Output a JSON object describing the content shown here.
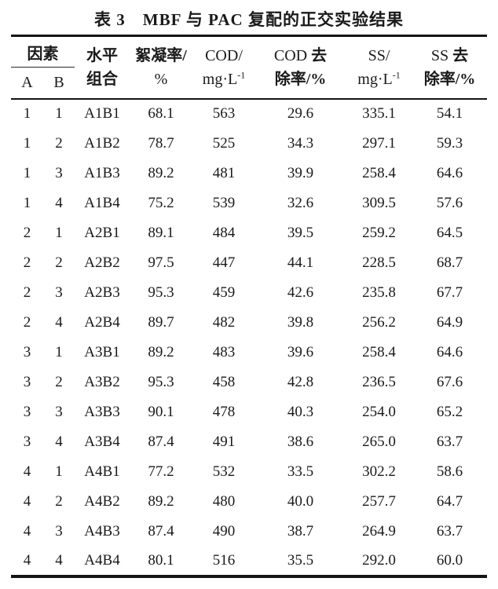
{
  "title": "表 3　MBF 与 PAC 复配的正交实验结果",
  "colors": {
    "text": "#1a1a1a",
    "rule": "#141414",
    "background": "#ffffff"
  },
  "table": {
    "header": {
      "factor": {
        "group": "因素",
        "a": "A",
        "b": "B"
      },
      "combo": {
        "line1": "水平",
        "line2": "组合"
      },
      "floc": {
        "line1": "絮凝率/",
        "line2": "%"
      },
      "cod": {
        "line1": "COD/",
        "unit_base": "mg·L",
        "unit_sup": "-1"
      },
      "cod_removal": {
        "latin": "COD",
        "cjk": "去",
        "line2": "除率/%"
      },
      "ss": {
        "line1": "SS/",
        "unit_base": "mg·L",
        "unit_sup": "-1"
      },
      "ss_removal": {
        "latin": "SS",
        "cjk": "去",
        "line2": "除率/%"
      }
    },
    "rows": [
      [
        "1",
        "1",
        "A1B1",
        "68.1",
        "563",
        "29.6",
        "335.1",
        "54.1"
      ],
      [
        "1",
        "2",
        "A1B2",
        "78.7",
        "525",
        "34.3",
        "297.1",
        "59.3"
      ],
      [
        "1",
        "3",
        "A1B3",
        "89.2",
        "481",
        "39.9",
        "258.4",
        "64.6"
      ],
      [
        "1",
        "4",
        "A1B4",
        "75.2",
        "539",
        "32.6",
        "309.5",
        "57.6"
      ],
      [
        "2",
        "1",
        "A2B1",
        "89.1",
        "484",
        "39.5",
        "259.2",
        "64.5"
      ],
      [
        "2",
        "2",
        "A2B2",
        "97.5",
        "447",
        "44.1",
        "228.5",
        "68.7"
      ],
      [
        "2",
        "3",
        "A2B3",
        "95.3",
        "459",
        "42.6",
        "235.8",
        "67.7"
      ],
      [
        "2",
        "4",
        "A2B4",
        "89.7",
        "482",
        "39.8",
        "256.2",
        "64.9"
      ],
      [
        "3",
        "1",
        "A3B1",
        "89.2",
        "483",
        "39.6",
        "258.4",
        "64.6"
      ],
      [
        "3",
        "2",
        "A3B2",
        "95.3",
        "458",
        "42.8",
        "236.5",
        "67.6"
      ],
      [
        "3",
        "3",
        "A3B3",
        "90.1",
        "478",
        "40.3",
        "254.0",
        "65.2"
      ],
      [
        "3",
        "4",
        "A3B4",
        "87.4",
        "491",
        "38.6",
        "265.0",
        "63.7"
      ],
      [
        "4",
        "1",
        "A4B1",
        "77.2",
        "532",
        "33.5",
        "302.2",
        "58.6"
      ],
      [
        "4",
        "2",
        "A4B2",
        "89.2",
        "480",
        "40.0",
        "257.7",
        "64.7"
      ],
      [
        "4",
        "3",
        "A4B3",
        "87.4",
        "490",
        "38.7",
        "264.9",
        "63.7"
      ],
      [
        "4",
        "4",
        "A4B4",
        "80.1",
        "516",
        "35.5",
        "292.0",
        "60.0"
      ]
    ]
  }
}
